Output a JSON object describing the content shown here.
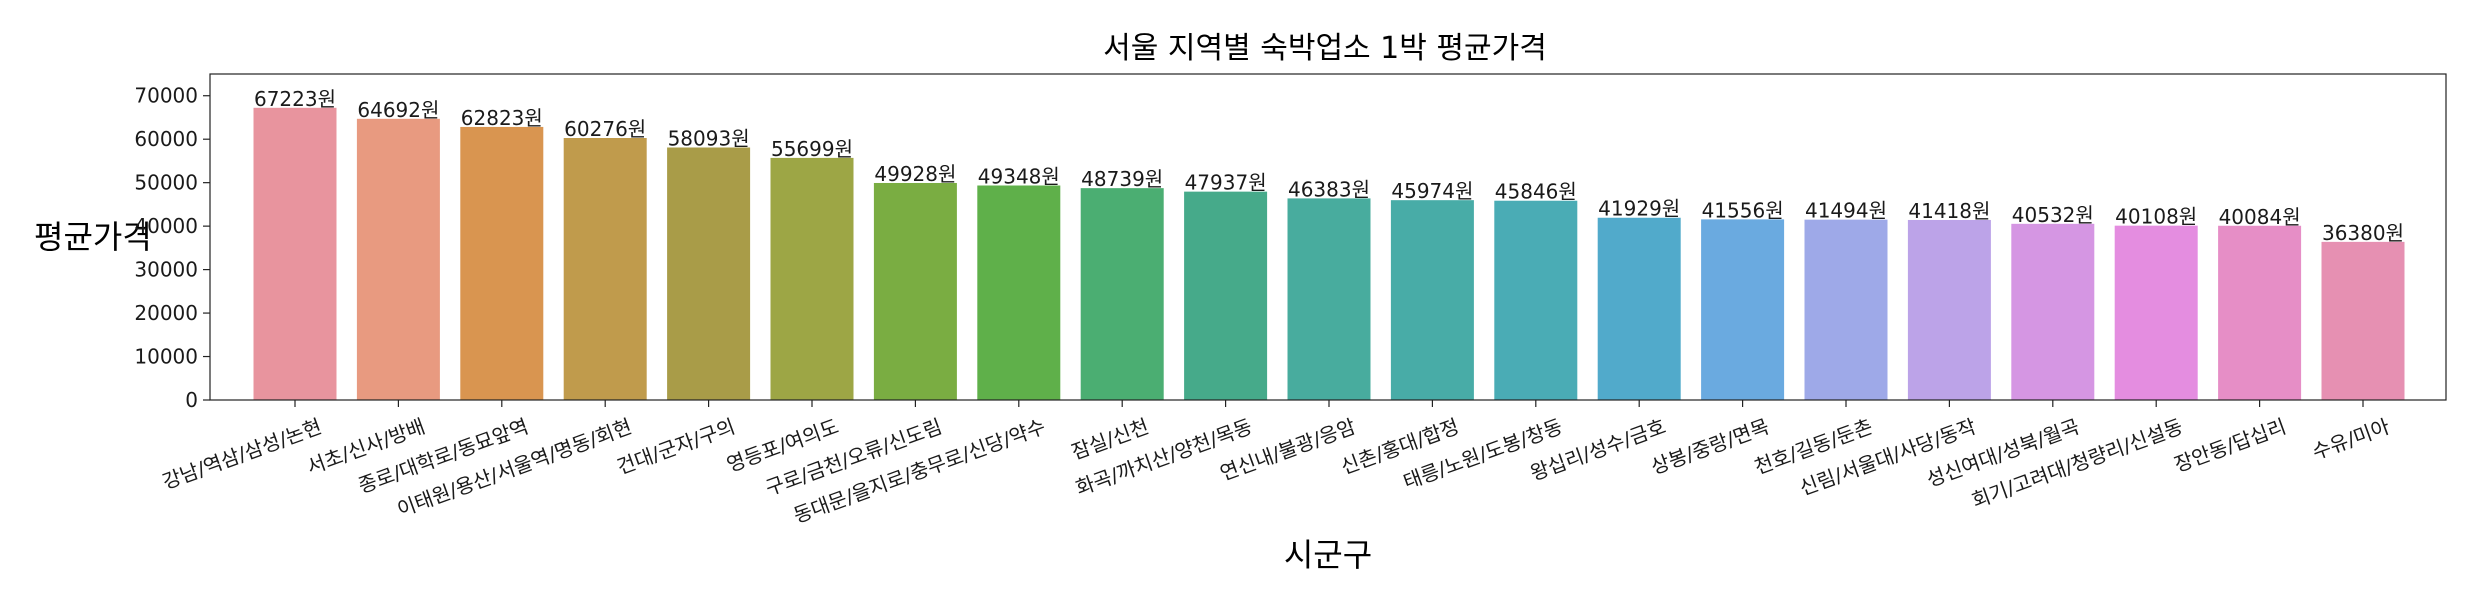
{
  "chart_data": {
    "type": "bar",
    "title": "서울 지역별 숙박업소 1박 평균가격",
    "xlabel": "시군구",
    "ylabel": "평균가격",
    "ylim": [
      0,
      75000
    ],
    "yticks": [
      0,
      10000,
      20000,
      30000,
      40000,
      50000,
      60000,
      70000
    ],
    "value_suffix": "원",
    "grid": false,
    "legend": "none",
    "categories": [
      "강남/역삼/삼성/논현",
      "서초/신사/방배",
      "종로/대학로/동묘앞역",
      "이태원/용산/서울역/명동/회현",
      "건대/군자/구의",
      "영등포/여의도",
      "구로/금천/오류/신도림",
      "동대문/을지로/충무로/신당/약수",
      "잠실/신천",
      "화곡/까치산/양천/목동",
      "연신내/불광/응암",
      "신촌/홍대/합정",
      "태릉/노원/도봉/창동",
      "왕십리/성수/금호",
      "상봉/중랑/면목",
      "천호/길동/둔촌",
      "신림/서울대/사당/동작",
      "성신여대/성북/월곡",
      "회기/고려대/청량리/신설동",
      "장안동/답십리",
      "수유/미아"
    ],
    "values": [
      67223,
      64692,
      62823,
      60276,
      58093,
      55699,
      49928,
      49348,
      48739,
      47937,
      46383,
      45974,
      45846,
      41929,
      41556,
      41494,
      41418,
      40532,
      40108,
      40084,
      36380
    ],
    "colors": [
      "#e8949e",
      "#e89a80",
      "#d99550",
      "#c09b4c",
      "#a99c48",
      "#9da645",
      "#7aad42",
      "#5fb04a",
      "#4bae72",
      "#46aa8a",
      "#48ac9e",
      "#48aca7",
      "#4aacb5",
      "#51aacb",
      "#6aaae0",
      "#9ea9e8",
      "#bca3e8",
      "#d596e3",
      "#e48de0",
      "#e68ec6",
      "#e690b2"
    ]
  }
}
